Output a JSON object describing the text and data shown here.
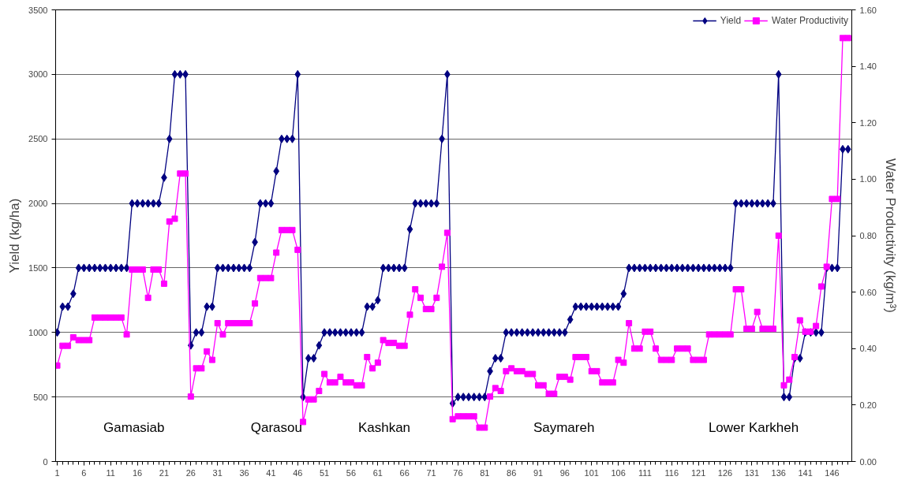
{
  "chart_data": {
    "type": "line",
    "x": [
      1,
      2,
      3,
      4,
      5,
      6,
      7,
      8,
      9,
      10,
      11,
      12,
      13,
      14,
      15,
      16,
      17,
      18,
      19,
      20,
      21,
      22,
      23,
      24,
      25,
      26,
      27,
      28,
      29,
      30,
      31,
      32,
      33,
      34,
      35,
      36,
      37,
      38,
      39,
      40,
      41,
      42,
      43,
      44,
      45,
      46,
      47,
      48,
      49,
      50,
      51,
      52,
      53,
      54,
      55,
      56,
      57,
      58,
      59,
      60,
      61,
      62,
      63,
      64,
      65,
      66,
      67,
      68,
      69,
      70,
      71,
      72,
      73,
      74,
      75,
      76,
      77,
      78,
      79,
      80,
      81,
      82,
      83,
      84,
      85,
      86,
      87,
      88,
      89,
      90,
      91,
      92,
      93,
      94,
      95,
      96,
      97,
      98,
      99,
      100,
      101,
      102,
      103,
      104,
      105,
      106,
      107,
      108,
      109,
      110,
      111,
      112,
      113,
      114,
      115,
      116,
      117,
      118,
      119,
      120,
      121,
      122,
      123,
      124,
      125,
      126,
      127,
      128,
      129,
      130,
      131,
      132,
      133,
      134,
      135,
      136,
      137,
      138,
      139,
      140,
      141,
      142,
      143,
      144,
      145,
      146,
      147,
      148,
      149
    ],
    "series": [
      {
        "name": "Yield",
        "color": "#000080",
        "marker": "diamond",
        "values": [
          1000,
          1200,
          1200,
          1300,
          1500,
          1500,
          1500,
          1500,
          1500,
          1500,
          1500,
          1500,
          1500,
          1500,
          2000,
          2000,
          2000,
          2000,
          2000,
          2000,
          2200,
          2500,
          3000,
          3000,
          3000,
          900,
          1000,
          1000,
          1200,
          1200,
          1500,
          1500,
          1500,
          1500,
          1500,
          1500,
          1500,
          1700,
          2000,
          2000,
          2000,
          2250,
          2500,
          2500,
          2500,
          3000,
          500,
          800,
          800,
          900,
          1000,
          1000,
          1000,
          1000,
          1000,
          1000,
          1000,
          1000,
          1200,
          1200,
          1250,
          1500,
          1500,
          1500,
          1500,
          1500,
          1800,
          2000,
          2000,
          2000,
          2000,
          2000,
          2500,
          3000,
          450,
          500,
          500,
          500,
          500,
          500,
          500,
          700,
          800,
          800,
          1000,
          1000,
          1000,
          1000,
          1000,
          1000,
          1000,
          1000,
          1000,
          1000,
          1000,
          1000,
          1100,
          1200,
          1200,
          1200,
          1200,
          1200,
          1200,
          1200,
          1200,
          1200,
          1300,
          1500,
          1500,
          1500,
          1500,
          1500,
          1500,
          1500,
          1500,
          1500,
          1500,
          1500,
          1500,
          1500,
          1500,
          1500,
          1500,
          1500,
          1500,
          1500,
          1500,
          2000,
          2000,
          2000,
          2000,
          2000,
          2000,
          2000,
          2000,
          3000,
          500,
          500,
          800,
          800,
          1000,
          1000,
          1000,
          1000,
          1500,
          1500,
          1500,
          2420,
          2420
        ]
      },
      {
        "name": "Water Productivity",
        "color": "#ff00ff",
        "marker": "square",
        "axis": "y2",
        "values": [
          0.34,
          0.41,
          0.41,
          0.44,
          0.43,
          0.43,
          0.43,
          0.51,
          0.51,
          0.51,
          0.51,
          0.51,
          0.51,
          0.45,
          0.68,
          0.68,
          0.68,
          0.58,
          0.68,
          0.68,
          0.63,
          0.85,
          0.86,
          1.02,
          1.02,
          0.23,
          0.33,
          0.33,
          0.39,
          0.36,
          0.49,
          0.45,
          0.49,
          0.49,
          0.49,
          0.49,
          0.49,
          0.56,
          0.65,
          0.65,
          0.65,
          0.74,
          0.82,
          0.82,
          0.82,
          0.75,
          0.14,
          0.22,
          0.22,
          0.25,
          0.31,
          0.28,
          0.28,
          0.3,
          0.28,
          0.28,
          0.27,
          0.27,
          0.37,
          0.33,
          0.35,
          0.43,
          0.42,
          0.42,
          0.41,
          0.41,
          0.52,
          0.61,
          0.58,
          0.54,
          0.54,
          0.58,
          0.69,
          0.81,
          0.15,
          0.16,
          0.16,
          0.16,
          0.16,
          0.12,
          0.12,
          0.23,
          0.26,
          0.25,
          0.32,
          0.33,
          0.32,
          0.32,
          0.31,
          0.31,
          0.27,
          0.27,
          0.24,
          0.24,
          0.3,
          0.3,
          0.29,
          0.37,
          0.37,
          0.37,
          0.32,
          0.32,
          0.28,
          0.28,
          0.28,
          0.36,
          0.35,
          0.49,
          0.4,
          0.4,
          0.46,
          0.46,
          0.4,
          0.36,
          0.36,
          0.36,
          0.4,
          0.4,
          0.4,
          0.36,
          0.36,
          0.36,
          0.45,
          0.45,
          0.45,
          0.45,
          0.45,
          0.61,
          0.61,
          0.47,
          0.47,
          0.53,
          0.47,
          0.47,
          0.47,
          0.8,
          0.27,
          0.29,
          0.37,
          0.5,
          0.46,
          0.46,
          0.48,
          0.62,
          0.69,
          0.93,
          0.93,
          1.5,
          1.5
        ]
      }
    ],
    "ylabel": "Yield (kg/ha)",
    "y2label": "Water Productivity (kg/m³)",
    "xlim": [
      0.7,
      149.7
    ],
    "xticks": [
      1,
      6,
      11,
      16,
      21,
      26,
      31,
      36,
      41,
      46,
      51,
      56,
      61,
      66,
      71,
      76,
      81,
      86,
      91,
      96,
      101,
      106,
      111,
      116,
      121,
      126,
      131,
      136,
      141,
      146
    ],
    "ylim": [
      0,
      3500
    ],
    "yticks": [
      0,
      500,
      1000,
      1500,
      2000,
      2500,
      3000,
      3500
    ],
    "y2lim": [
      0,
      1.6
    ],
    "y2ticks": [
      {
        "value": 0,
        "label": "0.00"
      },
      {
        "value": 0.2,
        "label": "0.20"
      },
      {
        "value": 0.4,
        "label": "0.40"
      },
      {
        "value": 0.6,
        "label": "0.60"
      },
      {
        "value": 0.8,
        "label": "0.80"
      },
      {
        "value": 1.0,
        "label": "1.00"
      },
      {
        "value": 1.2,
        "label": "1.20"
      },
      {
        "value": 1.4,
        "label": "1.40"
      },
      {
        "value": 1.6,
        "label": "1.60"
      }
    ],
    "grid": "y",
    "legend": "top right",
    "line_style": "solid",
    "annotations": [
      "Gamasiab",
      "Qarasou",
      "Kashkan",
      "Saymareh",
      "Lower Karkheh"
    ]
  }
}
